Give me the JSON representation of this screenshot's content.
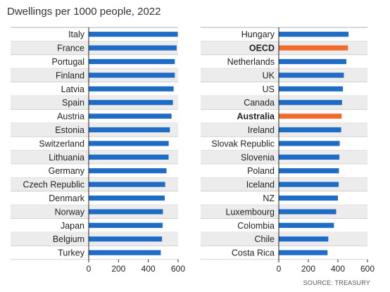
{
  "title": "Dwellings per 1000 people, 2022",
  "source": "SOURCE: TREASURY",
  "colors": {
    "bar": "#1f6cc7",
    "highlight": "#f26b2d",
    "stripe": "#ececec",
    "axis": "#222222"
  },
  "chart_data": [
    {
      "type": "bar",
      "orientation": "horizontal",
      "xlim": [
        0,
        600
      ],
      "xticks": [
        0,
        200,
        400,
        600
      ],
      "categories": [
        "Italy",
        "France",
        "Portugal",
        "Finland",
        "Latvia",
        "Spain",
        "Austria",
        "Estonia",
        "Switzerland",
        "Lithuania",
        "Germany",
        "Czech Republic",
        "Denmark",
        "Norway",
        "Japan",
        "Belgium",
        "Turkey"
      ],
      "values": [
        598,
        590,
        578,
        578,
        570,
        565,
        556,
        545,
        537,
        536,
        522,
        513,
        510,
        498,
        496,
        492,
        484
      ],
      "highlight": []
    },
    {
      "type": "bar",
      "orientation": "horizontal",
      "xlim": [
        0,
        600
      ],
      "xticks": [
        0,
        200,
        400,
        600
      ],
      "categories": [
        "Hungary",
        "OECD",
        "Netherlands",
        "UK",
        "US",
        "Canada",
        "Australia",
        "Ireland",
        "Slovak Republic",
        "Slovenia",
        "Poland",
        "Iceland",
        "NZ",
        "Luxembourg",
        "Colombia",
        "Chile",
        "Costa Rica"
      ],
      "values": [
        472,
        468,
        457,
        440,
        434,
        428,
        425,
        422,
        412,
        410,
        407,
        405,
        400,
        388,
        373,
        335,
        330
      ],
      "highlight": [
        "OECD",
        "Australia"
      ]
    }
  ]
}
